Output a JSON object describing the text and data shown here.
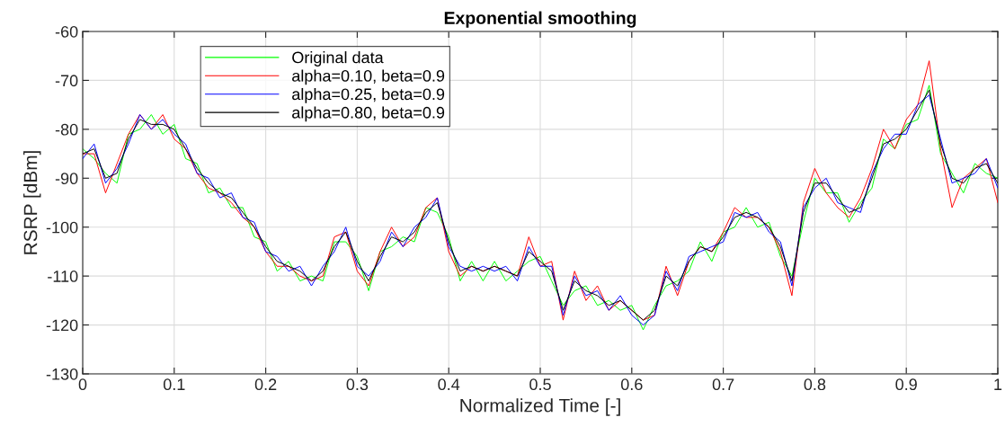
{
  "chart_data": {
    "type": "line",
    "title": "Exponential smoothing",
    "xlabel": "Normalized Time [-]",
    "ylabel": "RSRP [dBm]",
    "x": [
      0,
      0.0125,
      0.025,
      0.0375,
      0.05,
      0.0625,
      0.075,
      0.0875,
      0.1,
      0.1125,
      0.125,
      0.1375,
      0.15,
      0.1625,
      0.175,
      0.1875,
      0.2,
      0.2125,
      0.225,
      0.2375,
      0.25,
      0.2625,
      0.275,
      0.2875,
      0.3,
      0.3125,
      0.325,
      0.3375,
      0.35,
      0.3625,
      0.375,
      0.3875,
      0.4,
      0.4125,
      0.425,
      0.4375,
      0.45,
      0.4625,
      0.475,
      0.4875,
      0.5,
      0.5125,
      0.525,
      0.5375,
      0.55,
      0.5625,
      0.575,
      0.5875,
      0.6,
      0.6125,
      0.625,
      0.6375,
      0.65,
      0.6625,
      0.675,
      0.6875,
      0.7,
      0.7125,
      0.725,
      0.7375,
      0.75,
      0.7625,
      0.775,
      0.7875,
      0.8,
      0.8125,
      0.825,
      0.8375,
      0.85,
      0.8625,
      0.875,
      0.8875,
      0.9,
      0.9125,
      0.925,
      0.9375,
      0.95,
      0.9625,
      0.975,
      0.9875,
      1
    ],
    "series": [
      {
        "name": "Original data",
        "color": "#00ff00",
        "values": [
          -84,
          -86,
          -89,
          -91,
          -81,
          -80,
          -77,
          -81,
          -79,
          -86,
          -87,
          -93,
          -92,
          -96,
          -96,
          -102,
          -103,
          -109,
          -107,
          -111,
          -110,
          -111,
          -103,
          -103,
          -106,
          -113,
          -105,
          -104,
          -102,
          -103,
          -96,
          -97,
          -102,
          -111,
          -107,
          -111,
          -107,
          -111,
          -109,
          -107,
          -106,
          -111,
          -116,
          -113,
          -112,
          -116,
          -115,
          -117,
          -116,
          -121,
          -116,
          -112,
          -111,
          -109,
          -103,
          -107,
          -101,
          -100,
          -96,
          -100,
          -99,
          -106,
          -110,
          -99,
          -90,
          -93,
          -93,
          -99,
          -95,
          -92,
          -82,
          -84,
          -79,
          -78,
          -71,
          -85,
          -89,
          -93,
          -87,
          -89,
          -90
        ]
      },
      {
        "name": "alpha=0.10, beta=0.9",
        "color": "#ff0000",
        "values": [
          -85,
          -85,
          -93,
          -87,
          -81,
          -77,
          -80,
          -77,
          -82,
          -84,
          -89,
          -92,
          -93,
          -95,
          -98,
          -100,
          -105,
          -108,
          -108,
          -110,
          -111,
          -110,
          -102,
          -101,
          -109,
          -112,
          -105,
          -100,
          -104,
          -102,
          -96,
          -94,
          -105,
          -110,
          -108,
          -109,
          -108,
          -109,
          -110,
          -102,
          -108,
          -107,
          -119,
          -109,
          -115,
          -112,
          -117,
          -115,
          -117,
          -119,
          -118,
          -108,
          -114,
          -107,
          -104,
          -105,
          -101,
          -96,
          -98,
          -98,
          -100,
          -105,
          -114,
          -95,
          -88,
          -93,
          -96,
          -98,
          -94,
          -88,
          -80,
          -84,
          -78,
          -75,
          -66,
          -84,
          -96,
          -90,
          -88,
          -86,
          -95
        ]
      },
      {
        "name": "alpha=0.25, beta=0.9",
        "color": "#0000ff",
        "values": [
          -86,
          -83,
          -91,
          -88,
          -83,
          -77,
          -80,
          -78,
          -81,
          -83,
          -89,
          -90,
          -94,
          -93,
          -98,
          -99,
          -105,
          -106,
          -109,
          -108,
          -112,
          -108,
          -105,
          -100,
          -108,
          -110,
          -107,
          -101,
          -104,
          -100,
          -98,
          -94,
          -104,
          -108,
          -109,
          -108,
          -109,
          -108,
          -111,
          -104,
          -108,
          -108,
          -118,
          -110,
          -114,
          -113,
          -117,
          -114,
          -118,
          -120,
          -118,
          -109,
          -113,
          -106,
          -105,
          -104,
          -103,
          -97,
          -98,
          -97,
          -101,
          -103,
          -112,
          -96,
          -92,
          -90,
          -95,
          -96,
          -97,
          -89,
          -84,
          -81,
          -81,
          -75,
          -73,
          -82,
          -91,
          -90,
          -89,
          -86,
          -92
        ]
      },
      {
        "name": "alpha=0.80, beta=0.9",
        "color": "#000000",
        "values": [
          -85,
          -84,
          -90,
          -89,
          -82,
          -78,
          -79,
          -79,
          -80,
          -84,
          -88,
          -91,
          -93,
          -94,
          -97,
          -100,
          -104,
          -107,
          -108,
          -109,
          -111,
          -109,
          -104,
          -101,
          -107,
          -111,
          -106,
          -102,
          -103,
          -101,
          -97,
          -95,
          -103,
          -109,
          -108,
          -109,
          -108,
          -109,
          -110,
          -105,
          -107,
          -109,
          -117,
          -111,
          -113,
          -114,
          -116,
          -115,
          -117,
          -119,
          -117,
          -110,
          -112,
          -107,
          -104,
          -105,
          -102,
          -98,
          -97,
          -98,
          -100,
          -104,
          -111,
          -97,
          -91,
          -91,
          -94,
          -97,
          -96,
          -90,
          -83,
          -82,
          -80,
          -76,
          -72,
          -83,
          -90,
          -91,
          -88,
          -87,
          -91
        ]
      }
    ],
    "xlim": [
      0,
      1
    ],
    "xticks": [
      0,
      0.1,
      0.2,
      0.3,
      0.4,
      0.5,
      0.6,
      0.7,
      0.8,
      0.9,
      1
    ],
    "ylim": [
      -130,
      -60
    ],
    "yticks": [
      -130,
      -120,
      -110,
      -100,
      -90,
      -80,
      -70,
      -60
    ],
    "grid": true,
    "legend": "top left",
    "line_style": "solid",
    "marker": "none"
  }
}
